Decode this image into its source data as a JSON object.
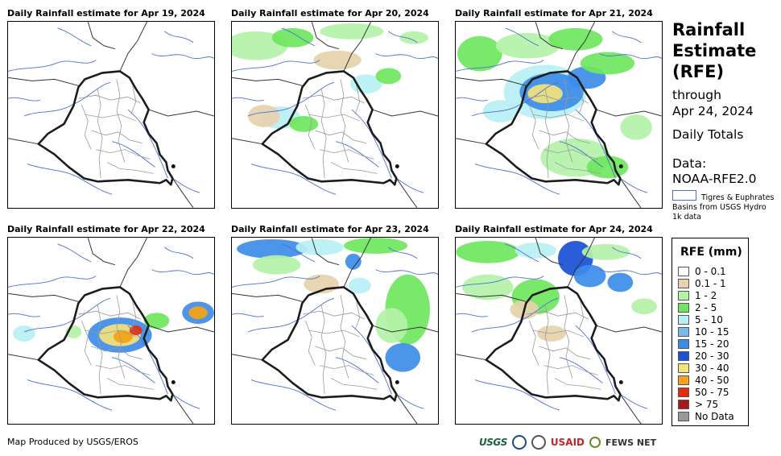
{
  "panels": [
    {
      "title": "Daily Rainfall estimate for Apr 19, 2024",
      "date": "Apr 19, 2024"
    },
    {
      "title": "Daily Rainfall estimate for Apr 20, 2024",
      "date": "Apr 20, 2024"
    },
    {
      "title": "Daily Rainfall estimate for Apr 21, 2024",
      "date": "Apr 21, 2024"
    },
    {
      "title": "Daily Rainfall estimate for Apr 22, 2024",
      "date": "Apr 22, 2024"
    },
    {
      "title": "Daily Rainfall estimate for Apr 23, 2024",
      "date": "Apr 23, 2024"
    },
    {
      "title": "Daily Rainfall estimate for Apr 24, 2024",
      "date": "Apr 24, 2024"
    }
  ],
  "sidebar": {
    "title_line1": "Rainfall",
    "title_line2": "Estimate",
    "title_line3": "(RFE)",
    "through_label": "through",
    "through_date": "Apr 24, 2024",
    "period": "Daily Totals",
    "data_label": "Data:",
    "data_source": "NOAA-RFE2.0",
    "basin_note": "Tigres & Euphrates Basins from USGS Hydro 1k data"
  },
  "legend": {
    "title": "RFE (mm)",
    "items": [
      {
        "label": "0 - 0.1",
        "color": "#ffffff"
      },
      {
        "label": "0.1 - 1",
        "color": "#e6d2ac"
      },
      {
        "label": "1 - 2",
        "color": "#b4f2a8"
      },
      {
        "label": "2 - 5",
        "color": "#6ee65e"
      },
      {
        "label": "5 - 10",
        "color": "#b8f0f4"
      },
      {
        "label": "10 - 15",
        "color": "#7ab8f0"
      },
      {
        "label": "15 - 20",
        "color": "#3c8ce8"
      },
      {
        "label": "20 - 30",
        "color": "#1a4fd6"
      },
      {
        "label": "30 - 40",
        "color": "#f4e27a"
      },
      {
        "label": "40 - 50",
        "color": "#f5a214"
      },
      {
        "label": "50 - 75",
        "color": "#e82a0c"
      },
      {
        "label": "> 75",
        "color": "#a81818"
      },
      {
        "label": "No Data",
        "color": "#999999"
      }
    ]
  },
  "footer": {
    "credit": "Map Produced by USGS/EROS",
    "logo_usgs": "USGS",
    "logo_usaid_us": "US",
    "logo_usaid_aid": "AID",
    "logo_fews": "FEWS NET"
  },
  "colors": {
    "border": "#1c1c1c",
    "admin": "#999999",
    "basin": "#4b6fd6"
  }
}
